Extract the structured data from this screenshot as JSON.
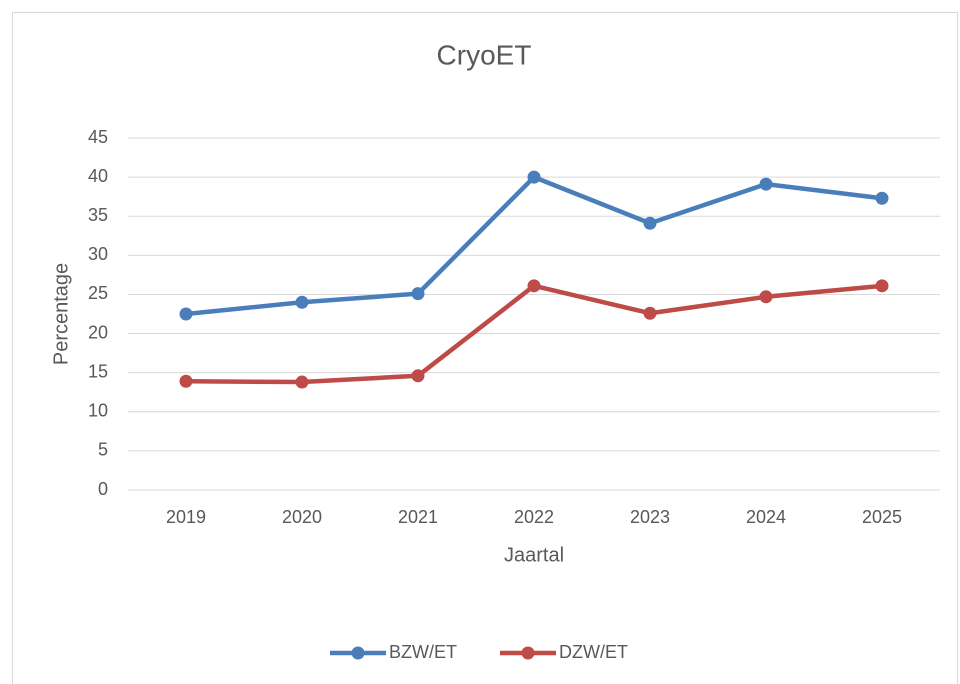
{
  "chart_data": {
    "type": "line",
    "title": "CryoET",
    "x_label": "Jaartal",
    "y_label": "Percentage",
    "categories": [
      "2019",
      "2020",
      "2021",
      "2022",
      "2023",
      "2024",
      "2025"
    ],
    "series": [
      {
        "name": "BZW/ET",
        "color": "#4a7ebb",
        "values": [
          22.5,
          24.0,
          25.1,
          40.0,
          34.1,
          39.1,
          37.3
        ]
      },
      {
        "name": "DZW/ET",
        "color": "#be4b48",
        "values": [
          13.9,
          13.8,
          14.6,
          26.1,
          22.6,
          24.7,
          26.1
        ]
      }
    ],
    "ylim": [
      0,
      45
    ],
    "yticks": [
      0,
      5,
      10,
      15,
      20,
      25,
      30,
      35,
      40,
      45
    ],
    "grid": true,
    "legend": "bottom"
  }
}
